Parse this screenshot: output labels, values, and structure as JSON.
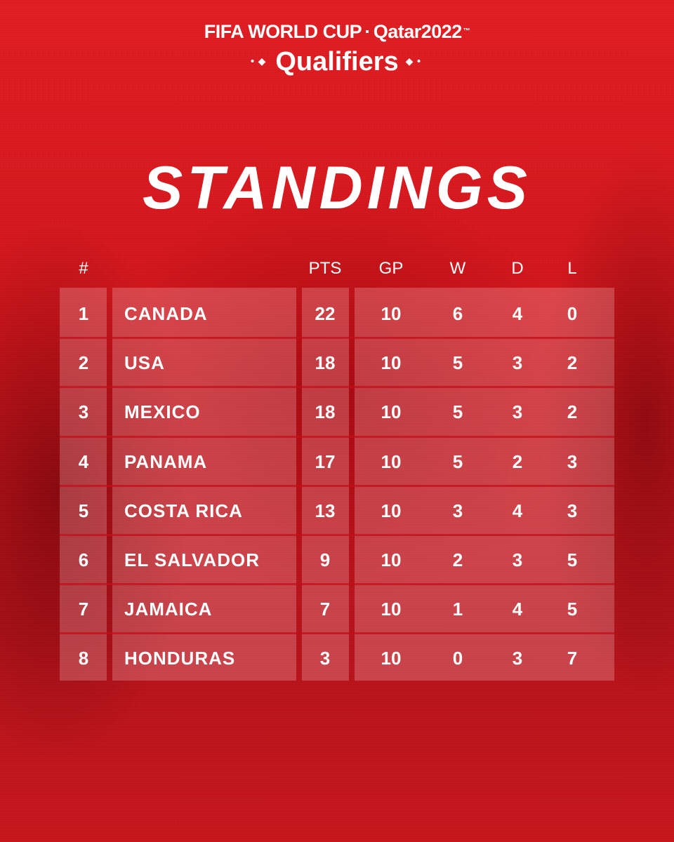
{
  "header": {
    "brand": "FIFA WORLD CUP",
    "edition": "Qatar2022",
    "trademark": "™",
    "subtitle": "Qualifiers"
  },
  "title": "STANDINGS",
  "columns": {
    "rank": "#",
    "pts": "PTS",
    "gp": "GP",
    "w": "W",
    "d": "D",
    "l": "L"
  },
  "rows": [
    {
      "rank": "1",
      "team": "CANADA",
      "pts": "22",
      "gp": "10",
      "w": "6",
      "d": "4",
      "l": "0"
    },
    {
      "rank": "2",
      "team": "USA",
      "pts": "18",
      "gp": "10",
      "w": "5",
      "d": "3",
      "l": "2"
    },
    {
      "rank": "3",
      "team": "MEXICO",
      "pts": "18",
      "gp": "10",
      "w": "5",
      "d": "3",
      "l": "2"
    },
    {
      "rank": "4",
      "team": "PANAMA",
      "pts": "17",
      "gp": "10",
      "w": "5",
      "d": "2",
      "l": "3"
    },
    {
      "rank": "5",
      "team": "COSTA RICA",
      "pts": "13",
      "gp": "10",
      "w": "3",
      "d": "4",
      "l": "3"
    },
    {
      "rank": "6",
      "team": "EL SALVADOR",
      "pts": "9",
      "gp": "10",
      "w": "2",
      "d": "3",
      "l": "5"
    },
    {
      "rank": "7",
      "team": "JAMAICA",
      "pts": "7",
      "gp": "10",
      "w": "1",
      "d": "4",
      "l": "5"
    },
    {
      "rank": "8",
      "team": "HONDURAS",
      "pts": "3",
      "gp": "10",
      "w": "0",
      "d": "3",
      "l": "7"
    }
  ],
  "colors": {
    "background": "#d0141b",
    "text": "#ffffff"
  }
}
